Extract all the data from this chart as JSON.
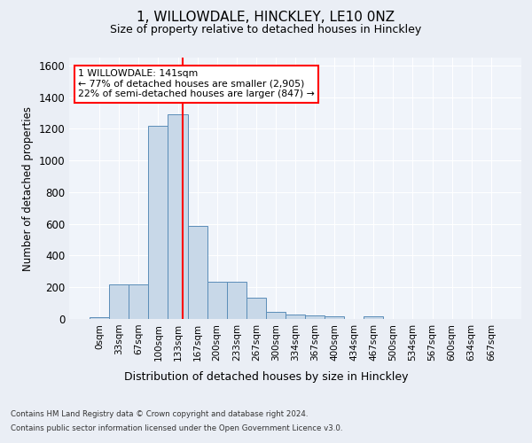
{
  "title_line1": "1, WILLOWDALE, HINCKLEY, LE10 0NZ",
  "title_line2": "Size of property relative to detached houses in Hinckley",
  "xlabel": "Distribution of detached houses by size in Hinckley",
  "ylabel": "Number of detached properties",
  "footnote1": "Contains HM Land Registry data © Crown copyright and database right 2024.",
  "footnote2": "Contains public sector information licensed under the Open Government Licence v3.0.",
  "annotation_line1": "1 WILLOWDALE: 141sqm",
  "annotation_line2": "← 77% of detached houses are smaller (2,905)",
  "annotation_line3": "22% of semi-detached houses are larger (847) →",
  "bar_color": "#c8d8e8",
  "bar_edge_color": "#5b8db8",
  "vline_color": "red",
  "vline_x": 4.25,
  "bin_labels": [
    "0sqm",
    "33sqm",
    "67sqm",
    "100sqm",
    "133sqm",
    "167sqm",
    "200sqm",
    "233sqm",
    "267sqm",
    "300sqm",
    "334sqm",
    "367sqm",
    "400sqm",
    "434sqm",
    "467sqm",
    "500sqm",
    "534sqm",
    "567sqm",
    "600sqm",
    "634sqm",
    "667sqm"
  ],
  "bar_values": [
    10,
    220,
    220,
    1220,
    1290,
    590,
    235,
    235,
    135,
    45,
    30,
    25,
    15,
    0,
    15,
    0,
    0,
    0,
    0,
    0,
    0
  ],
  "ylim": [
    0,
    1650
  ],
  "yticks": [
    0,
    200,
    400,
    600,
    800,
    1000,
    1200,
    1400,
    1600
  ],
  "bg_color": "#eaeef5",
  "plot_bg": "#f0f4fa",
  "grid_color": "#ffffff",
  "annotation_box_color": "white",
  "annotation_box_edge": "red"
}
